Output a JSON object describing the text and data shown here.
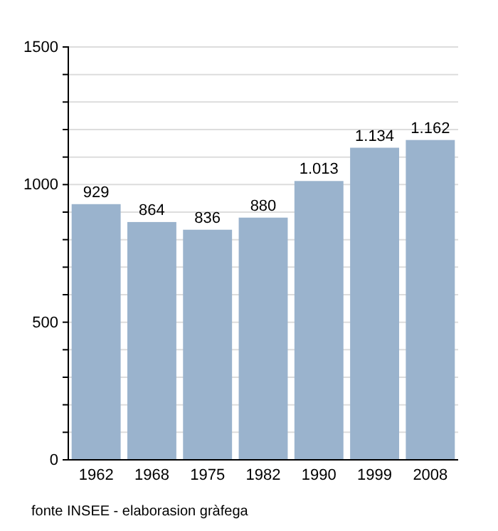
{
  "chart_data": {
    "type": "bar",
    "categories": [
      "1962",
      "1968",
      "1975",
      "1982",
      "1990",
      "1999",
      "2008"
    ],
    "values": [
      929,
      864,
      836,
      880,
      1013,
      1134,
      1162
    ],
    "value_labels": [
      "929",
      "864",
      "836",
      "880",
      "1.013",
      "1.134",
      "1.162"
    ],
    "color": "#9ab3cd",
    "ylim": [
      0,
      1500
    ],
    "yticks": [
      0,
      {
        "value": 100,
        "label": null
      },
      {
        "value": 200,
        "label": null
      },
      {
        "value": 300,
        "label": null
      },
      {
        "value": 400,
        "label": null
      },
      500,
      {
        "value": 600,
        "label": null
      },
      {
        "value": 700,
        "label": null
      },
      {
        "value": 800,
        "label": null
      },
      {
        "value": 900,
        "label": null
      },
      1000,
      {
        "value": 1100,
        "label": null
      },
      {
        "value": 1200,
        "label": null
      },
      {
        "value": 1300,
        "label": null
      },
      {
        "value": 1400,
        "label": null
      },
      1500
    ],
    "grid": "y",
    "annotations": [
      "fonte INSEE - elaborasion gràfega"
    ]
  }
}
